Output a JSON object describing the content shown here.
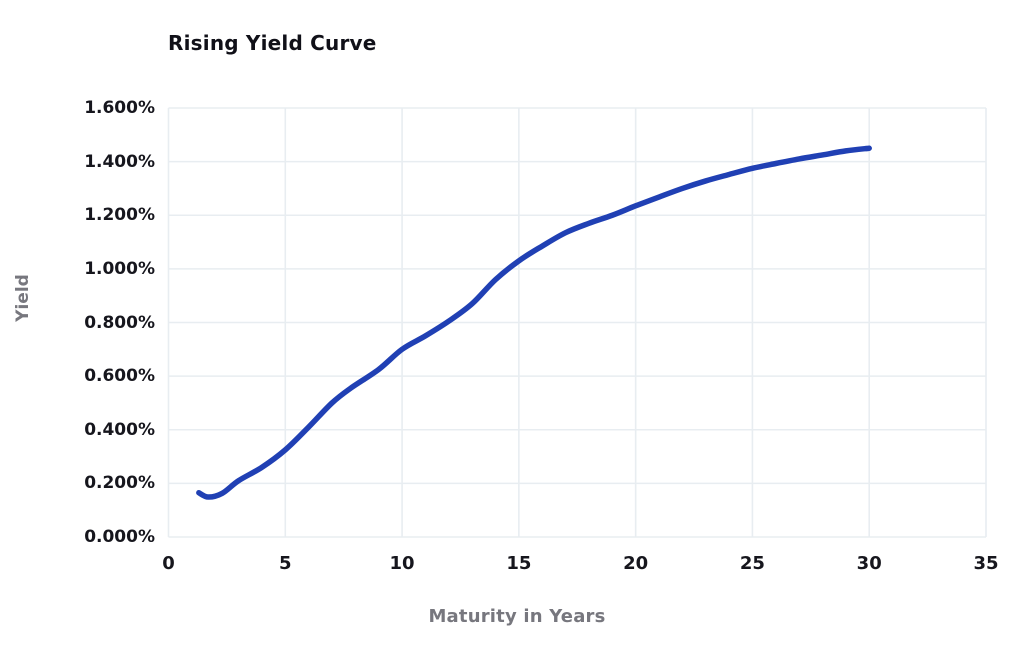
{
  "page": {
    "background": "#ffffff"
  },
  "chart_data": {
    "type": "line",
    "title": "Rising Yield Curve",
    "xlabel": "Maturity in Years",
    "ylabel": "Yield",
    "xlim": [
      0,
      35
    ],
    "ylim": [
      0,
      1.6
    ],
    "grid": true,
    "legend": false,
    "line_color": "#2040b4",
    "gridline_color": "#e8edf1",
    "title_color": "#101018",
    "tick_color": "#16161d",
    "axis_label_color": "#77777e",
    "x_ticks": [
      {
        "label": "0",
        "value": 0
      },
      {
        "label": "5",
        "value": 5
      },
      {
        "label": "10",
        "value": 10
      },
      {
        "label": "15",
        "value": 15
      },
      {
        "label": "20",
        "value": 20
      },
      {
        "label": "25",
        "value": 25
      },
      {
        "label": "30",
        "value": 30
      },
      {
        "label": "35",
        "value": 35
      }
    ],
    "y_ticks": [
      {
        "label": "0.000%",
        "value": 0.0
      },
      {
        "label": "0.200%",
        "value": 0.2
      },
      {
        "label": "0.400%",
        "value": 0.4
      },
      {
        "label": "0.600%",
        "value": 0.6
      },
      {
        "label": "0.800%",
        "value": 0.8
      },
      {
        "label": "1.000%",
        "value": 1.0
      },
      {
        "label": "1.200%",
        "value": 1.2
      },
      {
        "label": "1.400%",
        "value": 1.4
      },
      {
        "label": "1.600%",
        "value": 1.6
      }
    ],
    "series": [
      {
        "name": "Rising Yield Curve",
        "unit": "percent yield vs maturity in years",
        "points": [
          [
            1.3,
            0.165
          ],
          [
            1.7,
            0.149
          ],
          [
            2.3,
            0.163
          ],
          [
            3,
            0.21
          ],
          [
            4,
            0.26
          ],
          [
            5,
            0.325
          ],
          [
            6,
            0.41
          ],
          [
            7,
            0.5
          ],
          [
            7.8,
            0.555
          ],
          [
            9,
            0.625
          ],
          [
            10,
            0.7
          ],
          [
            11,
            0.75
          ],
          [
            12,
            0.805
          ],
          [
            13,
            0.87
          ],
          [
            14,
            0.96
          ],
          [
            15,
            1.03
          ],
          [
            16,
            1.085
          ],
          [
            17,
            1.135
          ],
          [
            18,
            1.17
          ],
          [
            19,
            1.2
          ],
          [
            20,
            1.235
          ],
          [
            21,
            1.268
          ],
          [
            22,
            1.3
          ],
          [
            23,
            1.328
          ],
          [
            24,
            1.352
          ],
          [
            25,
            1.375
          ],
          [
            26,
            1.393
          ],
          [
            27,
            1.41
          ],
          [
            28,
            1.425
          ],
          [
            29,
            1.44
          ],
          [
            30,
            1.45
          ]
        ]
      }
    ]
  }
}
